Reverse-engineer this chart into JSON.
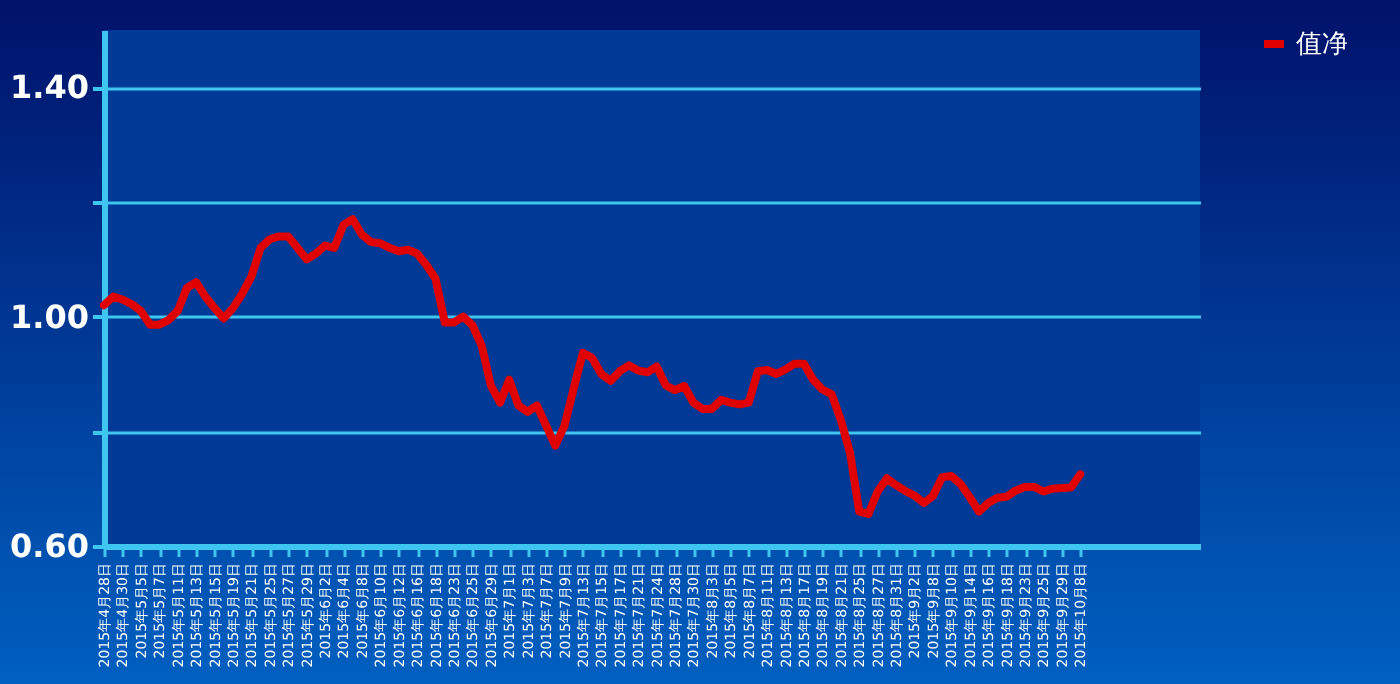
{
  "chart_data": {
    "type": "line",
    "categories": [
      "2015年4月28日",
      null,
      "2015年4月30日",
      null,
      "2015年5月5日",
      null,
      "2015年5月7日",
      null,
      "2015年5月11日",
      null,
      "2015年5月13日",
      null,
      "2015年5月15日",
      null,
      "2015年5月19日",
      null,
      "2015年5月21日",
      null,
      "2015年5月25日",
      null,
      "2015年5月27日",
      null,
      "2015年5月29日",
      null,
      "2015年6月2日",
      null,
      "2015年6月4日",
      null,
      "2015年6月8日",
      null,
      "2015年6月10日",
      null,
      "2015年6月12日",
      null,
      "2015年6月16日",
      null,
      "2015年6月18日",
      null,
      "2015年6月23日",
      null,
      "2015年6月25日",
      null,
      "2015年6月29日",
      null,
      "2015年7月1日",
      null,
      "2015年7月3日",
      null,
      "2015年7月7日",
      null,
      "2015年7月9日",
      null,
      "2015年7月13日",
      null,
      "2015年7月15日",
      null,
      "2015年7月17日",
      null,
      "2015年7月21日",
      null,
      "2015年7月24日",
      null,
      "2015年7月28日",
      null,
      "2015年7月30日",
      null,
      "2015年8月3日",
      null,
      "2015年8月5日",
      null,
      "2015年8月7日",
      null,
      "2015年8月11日",
      null,
      "2015年8月13日",
      null,
      "2015年8月17日",
      null,
      "2015年8月19日",
      null,
      "2015年8月21日",
      null,
      "2015年8月25日",
      null,
      "2015年8月27日",
      null,
      "2015年8月31日",
      null,
      "2015年9月2日",
      null,
      "2015年9月8日",
      null,
      "2015年9月10日",
      null,
      "2015年9月14日",
      null,
      "2015年9月16日",
      null,
      "2015年9月18日",
      null,
      "2015年9月23日",
      null,
      "2015年9月25日",
      null,
      "2015年9月29日",
      null,
      "2015年10月8日",
      null,
      null,
      null,
      null,
      null,
      null,
      null,
      null,
      null,
      null,
      null,
      null,
      null
    ],
    "series": [
      {
        "name": "值净",
        "color": "#e00000",
        "values": [
          1.02,
          1.035,
          1.03,
          1.022,
          1.01,
          0.986,
          0.986,
          0.994,
          1.01,
          1.05,
          1.06,
          1.035,
          1.015,
          0.997,
          1.015,
          1.04,
          1.07,
          1.12,
          1.135,
          1.14,
          1.14,
          1.12,
          1.1,
          1.11,
          1.124,
          1.12,
          1.16,
          1.17,
          1.143,
          1.13,
          1.128,
          1.12,
          1.114,
          1.117,
          1.11,
          1.09,
          1.066,
          0.99,
          0.99,
          1.0,
          0.985,
          0.95,
          0.88,
          0.85,
          0.89,
          0.845,
          0.834,
          0.845,
          0.81,
          0.775,
          0.81,
          0.875,
          0.937,
          0.928,
          0.9,
          0.888,
          0.905,
          0.915,
          0.906,
          0.903,
          0.913,
          0.88,
          0.872,
          0.879,
          0.85,
          0.839,
          0.839,
          0.855,
          0.85,
          0.847,
          0.85,
          0.905,
          0.907,
          0.9,
          0.908,
          0.918,
          0.918,
          0.89,
          0.873,
          0.865,
          0.82,
          0.763,
          0.66,
          0.656,
          0.695,
          0.718,
          0.706,
          0.696,
          0.688,
          0.675,
          0.687,
          0.72,
          0.722,
          0.708,
          0.685,
          0.66,
          0.675,
          0.684,
          0.686,
          0.697,
          0.703,
          0.703,
          0.695,
          0.7,
          0.701,
          0.702,
          0.725,
          null,
          null,
          null,
          null,
          null,
          null,
          null,
          null,
          null,
          null,
          null,
          null,
          null
        ]
      }
    ],
    "ylim": [
      0.6,
      1.5
    ],
    "yticks": [
      {
        "value": 0.6,
        "label": "0.60"
      },
      {
        "value": 0.8,
        "label": null
      },
      {
        "value": 1.0,
        "label": "1.00"
      },
      {
        "value": 1.2,
        "label": null
      },
      {
        "value": 1.4,
        "label": "1.40"
      }
    ],
    "grid": "y",
    "legend": "right",
    "marker": "none",
    "line_style": "solid"
  }
}
